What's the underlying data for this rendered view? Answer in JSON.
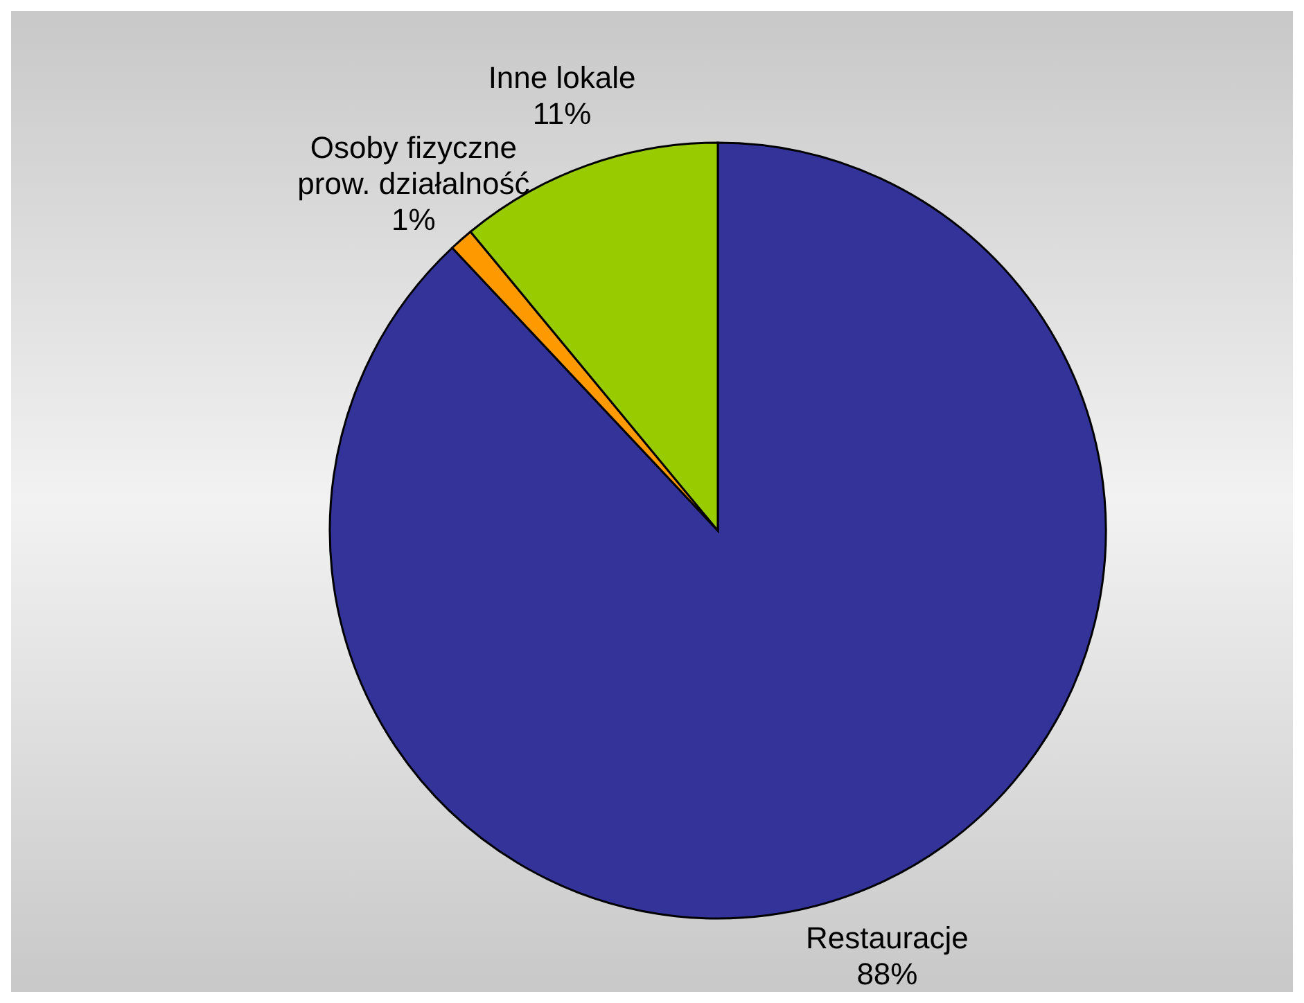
{
  "chart_data": {
    "type": "pie",
    "categories": [
      "Restauracje",
      "Osoby fizyczne prow. działalność",
      "Inne lokale"
    ],
    "values": [
      88,
      1,
      11
    ],
    "colors": [
      "#333399",
      "#ff9900",
      "#99cc00"
    ],
    "value_labels": [
      "88%",
      "1%",
      "11%"
    ],
    "legend": false
  }
}
